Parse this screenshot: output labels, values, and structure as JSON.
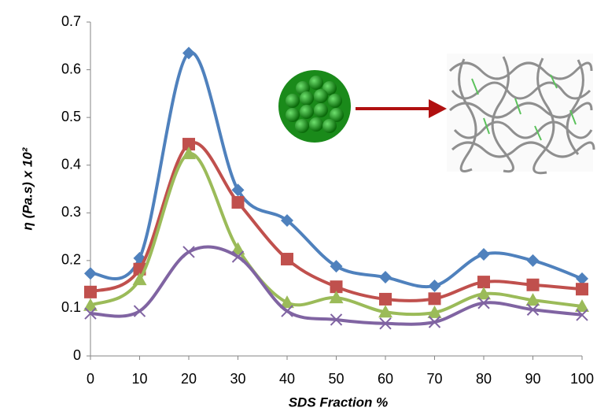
{
  "chart_data": {
    "type": "line",
    "x_label": "SDS Fraction %",
    "y_label": "η (Pa.s) x 10²",
    "x": [
      0,
      10,
      20,
      30,
      40,
      50,
      60,
      70,
      80,
      90,
      100
    ],
    "xlim": [
      0,
      100
    ],
    "xticks": [
      0,
      10,
      20,
      30,
      40,
      50,
      60,
      70,
      80,
      90,
      100
    ],
    "ylim": [
      0,
      0.7
    ],
    "yticks": [
      0,
      0.1,
      0.2,
      0.3,
      0.4,
      0.5,
      0.6,
      0.7
    ],
    "grid": false,
    "series": [
      {
        "color": "#4f81bd",
        "marker": "diamond",
        "values": [
          0.173,
          0.205,
          0.635,
          0.348,
          0.284,
          0.188,
          0.165,
          0.147,
          0.213,
          0.2,
          0.162
        ]
      },
      {
        "color": "#c0504d",
        "marker": "square",
        "values": [
          0.134,
          0.182,
          0.444,
          0.322,
          0.203,
          0.145,
          0.119,
          0.12,
          0.155,
          0.149,
          0.14
        ]
      },
      {
        "color": "#9bbb59",
        "marker": "triangle",
        "values": [
          0.106,
          0.16,
          0.424,
          0.224,
          0.112,
          0.122,
          0.092,
          0.091,
          0.13,
          0.117,
          0.104
        ]
      },
      {
        "color": "#8064a2",
        "marker": "x",
        "values": [
          0.089,
          0.094,
          0.218,
          0.208,
          0.094,
          0.076,
          0.068,
          0.071,
          0.111,
          0.097,
          0.086
        ]
      }
    ]
  }
}
